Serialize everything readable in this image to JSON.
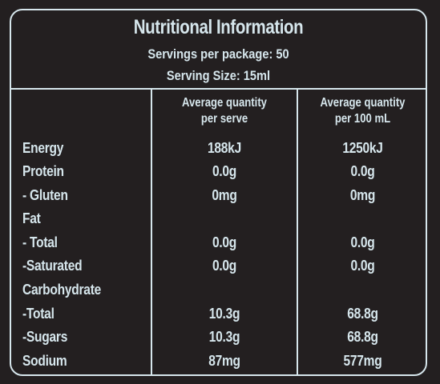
{
  "header": {
    "title": "Nutritional Information",
    "servings": "Servings per package: 50",
    "serving_size": "Serving Size: 15ml"
  },
  "columns": {
    "per_serve": "Average quantity\nper serve",
    "per_100": "Average quantity\nper 100 mL"
  },
  "rows": [
    {
      "label": "Energy",
      "per_serve": "188kJ",
      "per_100": "1250kJ"
    },
    {
      "label": "Protein",
      "per_serve": "0.0g",
      "per_100": "0.0g"
    },
    {
      "label": "- Gluten",
      "per_serve": "0mg",
      "per_100": "0mg"
    },
    {
      "label": "Fat",
      "per_serve": "",
      "per_100": ""
    },
    {
      "label": "- Total",
      "per_serve": "0.0g",
      "per_100": "0.0g"
    },
    {
      "label": "-Saturated",
      "per_serve": "0.0g",
      "per_100": "0.0g"
    },
    {
      "label": "Carbohydrate",
      "per_serve": "",
      "per_100": ""
    },
    {
      "label": "-Total",
      "per_serve": "10.3g",
      "per_100": "68.8g"
    },
    {
      "label": "-Sugars",
      "per_serve": "10.3g",
      "per_100": "68.8g"
    },
    {
      "label": "Sodium",
      "per_serve": "87mg",
      "per_100": "577mg"
    }
  ],
  "colors": {
    "background": "#231f20",
    "foreground": "#d6e6ec"
  }
}
